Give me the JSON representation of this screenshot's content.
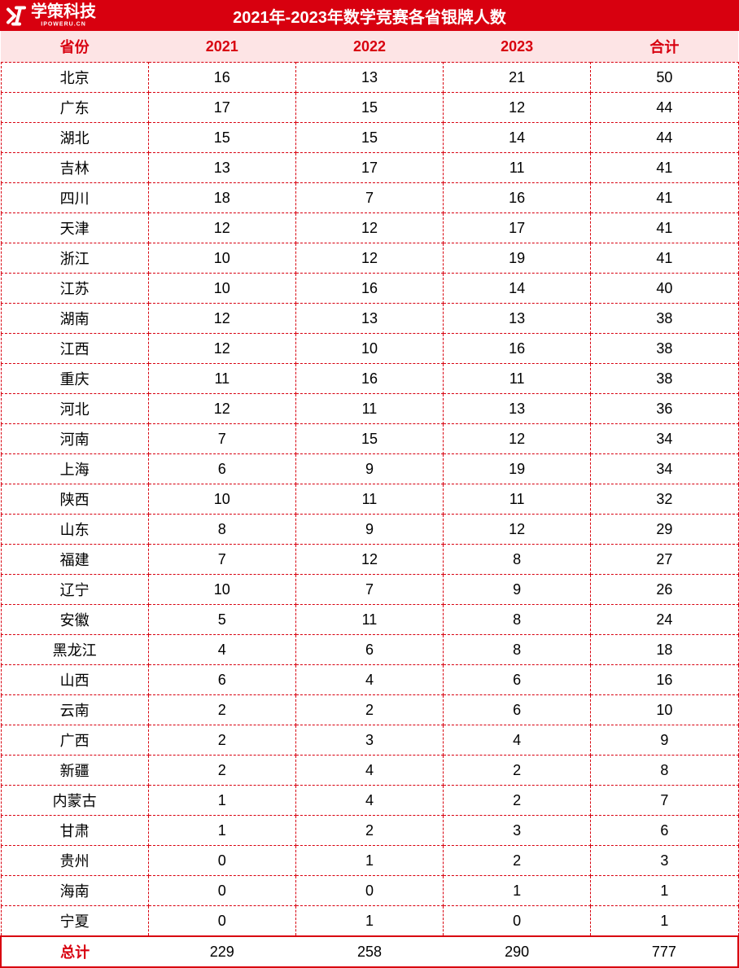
{
  "logo": {
    "brand": "学策科技",
    "subtitle": "IPOWERU.CN"
  },
  "title": "2021年-2023年数学竞赛各省银牌人数",
  "colors": {
    "title_bg": "#d8000f",
    "title_color": "#ffffff",
    "header_bg": "#fde4e5",
    "header_color": "#d8000f",
    "cell_color": "#000000",
    "border_color": "#d8000f",
    "total_border": "#d8000f",
    "total_label_color": "#d8000f"
  },
  "columns": [
    "省份",
    "2021",
    "2022",
    "2023",
    "合计"
  ],
  "rows": [
    [
      "北京",
      16,
      13,
      21,
      50
    ],
    [
      "广东",
      17,
      15,
      12,
      44
    ],
    [
      "湖北",
      15,
      15,
      14,
      44
    ],
    [
      "吉林",
      13,
      17,
      11,
      41
    ],
    [
      "四川",
      18,
      7,
      16,
      41
    ],
    [
      "天津",
      12,
      12,
      17,
      41
    ],
    [
      "浙江",
      10,
      12,
      19,
      41
    ],
    [
      "江苏",
      10,
      16,
      14,
      40
    ],
    [
      "湖南",
      12,
      13,
      13,
      38
    ],
    [
      "江西",
      12,
      10,
      16,
      38
    ],
    [
      "重庆",
      11,
      16,
      11,
      38
    ],
    [
      "河北",
      12,
      11,
      13,
      36
    ],
    [
      "河南",
      7,
      15,
      12,
      34
    ],
    [
      "上海",
      6,
      9,
      19,
      34
    ],
    [
      "陕西",
      10,
      11,
      11,
      32
    ],
    [
      "山东",
      8,
      9,
      12,
      29
    ],
    [
      "福建",
      7,
      12,
      8,
      27
    ],
    [
      "辽宁",
      10,
      7,
      9,
      26
    ],
    [
      "安徽",
      5,
      11,
      8,
      24
    ],
    [
      "黑龙江",
      4,
      6,
      8,
      18
    ],
    [
      "山西",
      6,
      4,
      6,
      16
    ],
    [
      "云南",
      2,
      2,
      6,
      10
    ],
    [
      "广西",
      2,
      3,
      4,
      9
    ],
    [
      "新疆",
      2,
      4,
      2,
      8
    ],
    [
      "内蒙古",
      1,
      4,
      2,
      7
    ],
    [
      "甘肃",
      1,
      2,
      3,
      6
    ],
    [
      "贵州",
      0,
      1,
      2,
      3
    ],
    [
      "海南",
      0,
      0,
      1,
      1
    ],
    [
      "宁夏",
      0,
      1,
      0,
      1
    ]
  ],
  "total": {
    "label": "总计",
    "values": [
      229,
      258,
      290,
      777
    ]
  },
  "layout": {
    "col_widths_pct": [
      20,
      20,
      20,
      20,
      20
    ],
    "title_fontsize": 20,
    "header_fontsize": 18,
    "cell_fontsize": 18
  }
}
